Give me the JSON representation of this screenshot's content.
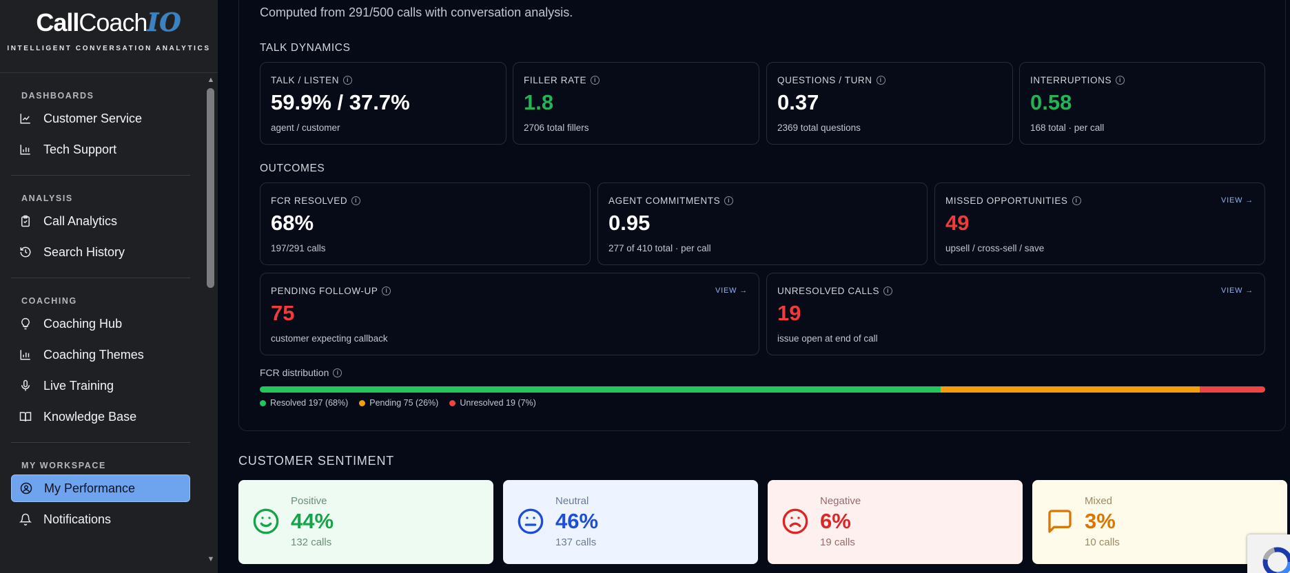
{
  "sidebar": {
    "logo": {
      "call": "Call",
      "coach": "Coach",
      "io": "IO",
      "subtitle": "INTELLIGENT CONVERSATION ANALYTICS"
    },
    "sections": [
      {
        "title": "DASHBOARDS",
        "items": [
          {
            "label": "Customer Service",
            "icon": "chart-line-icon"
          },
          {
            "label": "Tech Support",
            "icon": "bar-chart-icon"
          }
        ]
      },
      {
        "title": "ANALYSIS",
        "items": [
          {
            "label": "Call Analytics",
            "icon": "clipboard-icon"
          },
          {
            "label": "Search History",
            "icon": "history-icon"
          }
        ]
      },
      {
        "title": "COACHING",
        "items": [
          {
            "label": "Coaching Hub",
            "icon": "lightbulb-icon"
          },
          {
            "label": "Coaching Themes",
            "icon": "bar-chart-icon"
          },
          {
            "label": "Live Training",
            "icon": "microphone-icon"
          },
          {
            "label": "Knowledge Base",
            "icon": "book-icon"
          }
        ]
      },
      {
        "title": "MY WORKSPACE",
        "items": [
          {
            "label": "My Performance",
            "icon": "user-circle-icon",
            "active": true
          },
          {
            "label": "Notifications",
            "icon": "bell-icon"
          }
        ]
      }
    ]
  },
  "main": {
    "computed_text": "Computed from 291/500 calls with conversation analysis.",
    "talk_dynamics": {
      "title": "TALK DYNAMICS",
      "cards": [
        {
          "label": "TALK / LISTEN",
          "value": "59.9% / 37.7%",
          "sub": "agent / customer",
          "tone": "white"
        },
        {
          "label": "FILLER RATE",
          "value": "1.8",
          "sub": "2706 total fillers",
          "tone": "green"
        },
        {
          "label": "QUESTIONS / TURN",
          "value": "0.37",
          "sub": "2369 total questions",
          "tone": "white"
        },
        {
          "label": "INTERRUPTIONS",
          "value": "0.58",
          "sub": "168 total · per call",
          "tone": "green"
        }
      ]
    },
    "outcomes": {
      "title": "OUTCOMES",
      "row1": [
        {
          "label": "FCR RESOLVED",
          "value": "68%",
          "sub": "197/291 calls",
          "tone": "white"
        },
        {
          "label": "AGENT COMMITMENTS",
          "value": "0.95",
          "sub": "277 of 410 total · per call",
          "tone": "white"
        },
        {
          "label": "MISSED OPPORTUNITIES",
          "value": "49",
          "sub": "upsell / cross-sell / save",
          "tone": "red",
          "link": "VIEW →"
        }
      ],
      "row2": [
        {
          "label": "PENDING FOLLOW-UP",
          "value": "75",
          "sub": "customer expecting callback",
          "tone": "red",
          "link": "VIEW →"
        },
        {
          "label": "UNRESOLVED CALLS",
          "value": "19",
          "sub": "issue open at end of call",
          "tone": "red",
          "link": "VIEW →"
        }
      ]
    },
    "fcr_distribution": {
      "label": "FCR distribution",
      "segments": [
        {
          "name": "Resolved",
          "legend": "Resolved 197 (68%)",
          "count": 197,
          "percent": 68,
          "color": "#22c55e"
        },
        {
          "name": "Pending",
          "legend": "Pending 75 (26%)",
          "count": 75,
          "percent": 26,
          "color": "#f59e0b"
        },
        {
          "name": "Unresolved",
          "legend": "Unresolved 19 (7%)",
          "count": 19,
          "percent": 7,
          "color": "#ef4444"
        }
      ]
    },
    "customer_sentiment": {
      "title": "CUSTOMER SENTIMENT",
      "cards": [
        {
          "label": "Positive",
          "value": "44%",
          "sub": "132 calls",
          "icon": "smile-icon",
          "bg": "#eefbf2",
          "accent": "#16a34a",
          "muted": "#6b8f78"
        },
        {
          "label": "Neutral",
          "value": "46%",
          "sub": "137 calls",
          "icon": "neutral-face-icon",
          "bg": "#eef4ff",
          "accent": "#1d4ed8",
          "muted": "#6b7a96"
        },
        {
          "label": "Negative",
          "value": "6%",
          "sub": "19 calls",
          "icon": "frown-icon",
          "bg": "#fff0f0",
          "accent": "#dc2626",
          "muted": "#9a6b6b"
        },
        {
          "label": "Mixed",
          "value": "3%",
          "sub": "10 calls",
          "icon": "message-square-icon",
          "bg": "#fffbea",
          "accent": "#d97706",
          "muted": "#9a8a62"
        }
      ]
    }
  }
}
